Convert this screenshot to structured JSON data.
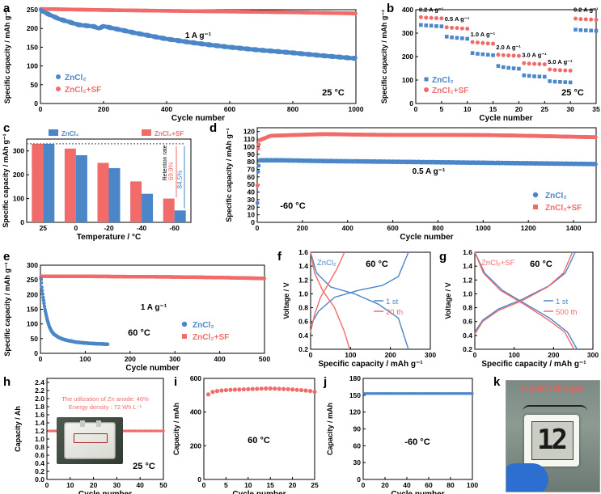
{
  "colors": {
    "blue": "#4a86c8",
    "red": "#f26b6b",
    "axis": "#000000"
  },
  "panel_letters": [
    "a",
    "b",
    "c",
    "d",
    "e",
    "f",
    "g",
    "h",
    "i",
    "j",
    "k"
  ],
  "chart_data": [
    {
      "panel": "a",
      "type": "scatter",
      "xlabel": "Cycle number",
      "ylabel": "Specific capacity / mAh g⁻¹",
      "xlim": [
        0,
        1000
      ],
      "ylim": [
        0,
        250
      ],
      "xticks": [
        0,
        200,
        400,
        600,
        800,
        1000
      ],
      "yticks": [
        0,
        50,
        100,
        150,
        200,
        250
      ],
      "annotations": [
        "1 A g⁻¹",
        "25 °C"
      ],
      "legend_position": "bottom-left",
      "series": [
        {
          "name": "ZnCl₂",
          "color": "#4a86c8",
          "x": [
            1,
            20,
            60,
            120,
            170,
            185,
            200,
            300,
            400,
            500,
            600,
            700,
            800,
            900,
            1000
          ],
          "y": [
            248,
            240,
            225,
            210,
            205,
            200,
            206,
            188,
            172,
            160,
            150,
            142,
            135,
            127,
            120
          ]
        },
        {
          "name": "ZnCl₂+SF",
          "color": "#f26b6b",
          "x": [
            1,
            200,
            400,
            600,
            800,
            1000
          ],
          "y": [
            252,
            249,
            247,
            245,
            243,
            240
          ]
        }
      ]
    },
    {
      "panel": "b",
      "type": "scatter",
      "xlabel": "Cycle number",
      "ylabel": "Specific capacity / mAh g⁻¹",
      "xlim": [
        0,
        35
      ],
      "ylim": [
        0,
        400
      ],
      "xticks": [
        0,
        5,
        10,
        15,
        20,
        25,
        30,
        35
      ],
      "yticks": [
        0,
        100,
        200,
        300,
        400
      ],
      "annotations": [
        "25 °C"
      ],
      "rate_labels": [
        "0.2 A g⁻¹",
        "0.5 A g⁻¹",
        "1.0 A g⁻¹",
        "2.0 A g⁻¹",
        "3.0 A g⁻¹",
        "5.0 A g⁻¹",
        "0.2 A g⁻¹"
      ],
      "series": [
        {
          "name": "ZnCl₂",
          "color": "#4a86c8",
          "y": [
            335,
            333,
            332,
            330,
            329,
            285,
            282,
            280,
            278,
            276,
            215,
            212,
            210,
            208,
            206,
            160,
            155,
            152,
            150,
            148,
            120,
            118,
            116,
            115,
            114,
            95,
            93,
            92,
            91,
            90,
            315,
            313,
            312,
            311,
            310
          ]
        },
        {
          "name": "ZnCl₂+SF",
          "color": "#f26b6b",
          "y": [
            368,
            366,
            365,
            364,
            363,
            325,
            323,
            322,
            320,
            319,
            262,
            260,
            258,
            256,
            255,
            208,
            206,
            205,
            204,
            203,
            172,
            170,
            169,
            168,
            167,
            145,
            143,
            142,
            141,
            140,
            362,
            360,
            359,
            358,
            357
          ]
        }
      ]
    },
    {
      "panel": "c",
      "type": "bar",
      "xlabel": "Temperature / °C",
      "ylabel": "Specific capacity / mAh g⁻¹",
      "ylim": [
        0,
        350
      ],
      "yticks": [
        0,
        100,
        200,
        300
      ],
      "categories": [
        "25",
        "0",
        "-20",
        "-40",
        "-60"
      ],
      "series": [
        {
          "name": "ZnCl₂+SF",
          "color": "#f26b6b",
          "values": [
            330,
            310,
            250,
            172,
            100
          ]
        },
        {
          "name": "ZnCl₂",
          "color": "#4a86c8",
          "values": [
            330,
            282,
            228,
            120,
            50
          ]
        }
      ],
      "annotations": [
        "Retention rate",
        "69.9%",
        "84.5%"
      ]
    },
    {
      "panel": "d",
      "type": "scatter",
      "xlabel": "Cycle number",
      "ylabel": "Specific capacity / mAh g⁻¹",
      "xlim": [
        0,
        1500
      ],
      "ylim": [
        0,
        125
      ],
      "xticks": [
        0,
        200,
        400,
        600,
        800,
        1000,
        1200,
        1400
      ],
      "yticks": [
        0,
        10,
        20,
        30,
        40,
        50,
        60,
        70,
        80,
        90,
        100,
        110,
        120
      ],
      "annotations": [
        "0.5 A g⁻¹",
        "-60 °C"
      ],
      "series": [
        {
          "name": "ZnCl₂",
          "color": "#4a86c8",
          "x": [
            1,
            3,
            10,
            100,
            300,
            600,
            900,
            1200,
            1500
          ],
          "y": [
            25,
            65,
            82,
            82,
            81,
            80,
            79,
            78,
            77
          ]
        },
        {
          "name": "ZnCl₂+SF",
          "color": "#f26b6b",
          "x": [
            1,
            3,
            10,
            60,
            300,
            600,
            900,
            1200,
            1500
          ],
          "y": [
            48,
            95,
            108,
            114,
            117,
            116,
            115,
            114,
            113
          ]
        }
      ]
    },
    {
      "panel": "e",
      "type": "scatter",
      "xlabel": "Cycle number",
      "ylabel": "Specific capacity / mAh g⁻¹",
      "xlim": [
        0,
        500
      ],
      "ylim": [
        0,
        300
      ],
      "xticks": [
        0,
        100,
        200,
        300,
        400,
        500
      ],
      "yticks": [
        0,
        50,
        100,
        150,
        200,
        250,
        300
      ],
      "annotations": [
        "1 A g⁻¹",
        "60 °C"
      ],
      "series": [
        {
          "name": "ZnCl₂",
          "color": "#4a86c8",
          "x": [
            1,
            3,
            6,
            10,
            15,
            20,
            25,
            30,
            40,
            50,
            60,
            80,
            100,
            120,
            150
          ],
          "y": [
            255,
            225,
            190,
            150,
            115,
            90,
            75,
            65,
            55,
            48,
            44,
            38,
            35,
            33,
            31
          ]
        },
        {
          "name": "ZnCl₂+SF",
          "color": "#f26b6b",
          "x": [
            1,
            100,
            200,
            300,
            400,
            500
          ],
          "y": [
            262,
            262,
            261,
            260,
            258,
            255
          ]
        }
      ]
    },
    {
      "panel": "f",
      "type": "line",
      "title": "ZnCl₂",
      "annotations": [
        "60 °C"
      ],
      "xlabel": "Specific capacity / mAh g⁻¹",
      "ylabel": "Voltage / V",
      "xlim": [
        0,
        300
      ],
      "ylim": [
        0.2,
        1.6
      ],
      "xticks": [
        0,
        100,
        200,
        300
      ],
      "yticks": [
        0.2,
        0.4,
        0.6,
        0.8,
        1.0,
        1.2,
        1.4,
        1.6
      ],
      "series": [
        {
          "name": "1 st",
          "color": "#4a86c8",
          "charge": [
            [
              0,
              0.55
            ],
            [
              20,
              0.75
            ],
            [
              60,
              0.95
            ],
            [
              120,
              1.05
            ],
            [
              180,
              1.12
            ],
            [
              220,
              1.25
            ],
            [
              245,
              1.6
            ]
          ],
          "discharge": [
            [
              0,
              1.6
            ],
            [
              15,
              1.3
            ],
            [
              50,
              1.1
            ],
            [
              110,
              1.0
            ],
            [
              170,
              0.85
            ],
            [
              220,
              0.65
            ],
            [
              245,
              0.2
            ]
          ]
        },
        {
          "name": "20 th",
          "color": "#f26b6b",
          "charge": [
            [
              0,
              0.45
            ],
            [
              10,
              0.7
            ],
            [
              25,
              0.95
            ],
            [
              45,
              1.15
            ],
            [
              65,
              1.35
            ],
            [
              85,
              1.6
            ]
          ],
          "discharge": [
            [
              0,
              1.6
            ],
            [
              10,
              1.3
            ],
            [
              30,
              1.05
            ],
            [
              60,
              0.8
            ],
            [
              85,
              0.45
            ],
            [
              98,
              0.2
            ]
          ]
        }
      ]
    },
    {
      "panel": "g",
      "type": "line",
      "title": "ZnCl₂+SF",
      "annotations": [
        "60 °C"
      ],
      "xlabel": "Specific capacity / mAh g⁻¹",
      "ylabel": "Voltage / V",
      "xlim": [
        0,
        300
      ],
      "ylim": [
        0.2,
        1.6
      ],
      "xticks": [
        0,
        100,
        200,
        300
      ],
      "yticks": [
        0.2,
        0.4,
        0.6,
        0.8,
        1.0,
        1.2,
        1.4,
        1.6
      ],
      "series": [
        {
          "name": "1 st",
          "color": "#4a86c8",
          "charge": [
            [
              0,
              0.45
            ],
            [
              20,
              0.62
            ],
            [
              60,
              0.78
            ],
            [
              120,
              0.92
            ],
            [
              190,
              1.12
            ],
            [
              230,
              1.3
            ],
            [
              255,
              1.6
            ]
          ],
          "discharge": [
            [
              0,
              1.6
            ],
            [
              25,
              1.3
            ],
            [
              70,
              1.05
            ],
            [
              130,
              0.85
            ],
            [
              190,
              0.65
            ],
            [
              235,
              0.45
            ],
            [
              260,
              0.2
            ]
          ]
        },
        {
          "name": "500 th",
          "color": "#f26b6b",
          "charge": [
            [
              0,
              0.42
            ],
            [
              20,
              0.6
            ],
            [
              60,
              0.76
            ],
            [
              120,
              0.9
            ],
            [
              185,
              1.1
            ],
            [
              225,
              1.3
            ],
            [
              248,
              1.6
            ]
          ],
          "discharge": [
            [
              0,
              1.6
            ],
            [
              22,
              1.3
            ],
            [
              65,
              1.05
            ],
            [
              125,
              0.85
            ],
            [
              185,
              0.63
            ],
            [
              228,
              0.45
            ],
            [
              252,
              0.2
            ]
          ]
        }
      ]
    },
    {
      "panel": "h",
      "type": "scatter",
      "xlabel": "Cycle number",
      "ylabel": "Capacity / Ah",
      "xlim": [
        0,
        50
      ],
      "ylim": [
        0,
        2.5
      ],
      "xticks": [
        0,
        10,
        20,
        30,
        40,
        50
      ],
      "yticks": [
        0.0,
        0.2,
        0.4,
        0.6,
        0.8,
        1.0,
        1.2,
        1.4,
        1.6,
        1.8,
        2.0,
        2.2,
        2.4
      ],
      "annotations": [
        "The utilization of  Zn anode: 46%",
        "Energy density : 72 Wh L⁻¹",
        "25 °C"
      ],
      "series": [
        {
          "name": "capacity",
          "color": "#f26b6b",
          "x": [
            1,
            10,
            20,
            30,
            40,
            50
          ],
          "y": [
            1.2,
            1.2,
            1.2,
            1.2,
            1.2,
            1.2
          ]
        }
      ]
    },
    {
      "panel": "i",
      "type": "scatter",
      "xlabel": "Cycle number",
      "ylabel": "Capacity / mAh",
      "xlim": [
        0,
        25
      ],
      "ylim": [
        0,
        600
      ],
      "xticks": [
        0,
        5,
        10,
        15,
        20,
        25
      ],
      "yticks": [
        0,
        200,
        400,
        600
      ],
      "annotations": [
        "60 °C"
      ],
      "series": [
        {
          "name": "capacity",
          "color": "#f26b6b",
          "x": [
            1,
            2,
            3,
            4,
            5,
            6,
            7,
            8,
            9,
            10,
            11,
            12,
            13,
            14,
            15,
            16,
            17,
            18,
            19,
            20,
            21,
            22,
            23,
            24,
            25
          ],
          "y": [
            505,
            520,
            525,
            528,
            530,
            532,
            533,
            534,
            535,
            536,
            537,
            538,
            539,
            540,
            540,
            539,
            538,
            537,
            536,
            534,
            532,
            530,
            528,
            525,
            520
          ]
        }
      ]
    },
    {
      "panel": "j",
      "type": "scatter",
      "xlabel": "Cycle number",
      "ylabel": "Capacity / mAh",
      "xlim": [
        0,
        100
      ],
      "ylim": [
        0,
        180
      ],
      "xticks": [
        0,
        20,
        40,
        60,
        80,
        100
      ],
      "yticks": [
        0,
        30,
        60,
        90,
        120,
        150,
        180
      ],
      "annotations": [
        "-60 °C"
      ],
      "series": [
        {
          "name": "capacity",
          "color": "#4a86c8",
          "x": [
            1,
            20,
            40,
            60,
            80,
            100
          ],
          "y": [
            153,
            153,
            153,
            153,
            153,
            153
          ]
        }
      ]
    }
  ],
  "photo_k": {
    "label": "Liquid nitrogen",
    "display_digits": "12"
  }
}
